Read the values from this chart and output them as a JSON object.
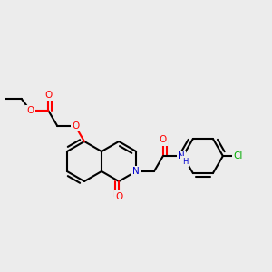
{
  "bg_color": "#ececec",
  "bond_color": "#000000",
  "o_color": "#ff0000",
  "n_color": "#0000cd",
  "cl_color": "#00aa00",
  "lw": 1.5,
  "fs": 7.5,
  "bl": 22
}
